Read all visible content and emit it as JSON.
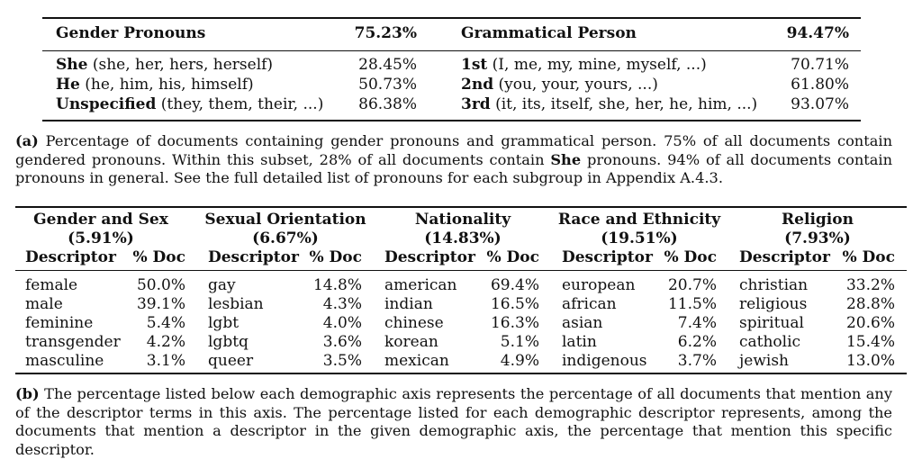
{
  "table_a": {
    "header": {
      "left_title": "Gender Pronouns",
      "left_pct": "75.23%",
      "right_title": "Grammatical Person",
      "right_pct": "94.47%"
    },
    "left_rows": [
      {
        "bold": "She",
        "terms": " (she, her, hers, herself)",
        "pct": "28.45%"
      },
      {
        "bold": "He",
        "terms": " (he, him, his, himself)",
        "pct": "50.73%"
      },
      {
        "bold": "Unspecified",
        "terms": " (they, them, their, ...)",
        "pct": "86.38%"
      }
    ],
    "right_rows": [
      {
        "bold": "1st",
        "terms": " (I, me, my, mine, myself, ...)",
        "pct": "70.71%"
      },
      {
        "bold": "2nd",
        "terms": " (you, your, yours, ...)",
        "pct": "61.80%"
      },
      {
        "bold": "3rd",
        "terms": " (it, its, itself, she, her, he, him, ...)",
        "pct": "93.07%"
      }
    ]
  },
  "caption_a": {
    "label": "(a)",
    "pre": " Percentage of documents containing gender pronouns and grammatical person. 75% of all documents contain gendered pronouns. Within this subset, 28% of all documents contain ",
    "bold": "She",
    "post": " pronouns. 94% of all documents contain pronouns in general. See the full detailed list of pronouns for each subgroup in Appendix A.4.3."
  },
  "table_b": {
    "col_descriptor": "Descriptor",
    "col_pct": "% Doc",
    "axes": [
      {
        "name": "Gender and Sex",
        "pct": "(5.91%)",
        "rows": [
          [
            "female",
            "50.0%"
          ],
          [
            "male",
            "39.1%"
          ],
          [
            "feminine",
            "5.4%"
          ],
          [
            "transgender",
            "4.2%"
          ],
          [
            "masculine",
            "3.1%"
          ]
        ]
      },
      {
        "name": "Sexual Orientation",
        "pct": "(6.67%)",
        "rows": [
          [
            "gay",
            "14.8%"
          ],
          [
            "lesbian",
            "4.3%"
          ],
          [
            "lgbt",
            "4.0%"
          ],
          [
            "lgbtq",
            "3.6%"
          ],
          [
            "queer",
            "3.5%"
          ]
        ]
      },
      {
        "name": "Nationality",
        "pct": "(14.83%)",
        "rows": [
          [
            "american",
            "69.4%"
          ],
          [
            "indian",
            "16.5%"
          ],
          [
            "chinese",
            "16.3%"
          ],
          [
            "korean",
            "5.1%"
          ],
          [
            "mexican",
            "4.9%"
          ]
        ]
      },
      {
        "name": "Race and Ethnicity",
        "pct": "(19.51%)",
        "rows": [
          [
            "european",
            "20.7%"
          ],
          [
            "african",
            "11.5%"
          ],
          [
            "asian",
            "7.4%"
          ],
          [
            "latin",
            "6.2%"
          ],
          [
            "indigenous",
            "3.7%"
          ]
        ]
      },
      {
        "name": "Religion",
        "pct": "(7.93%)",
        "rows": [
          [
            "christian",
            "33.2%"
          ],
          [
            "religious",
            "28.8%"
          ],
          [
            "spiritual",
            "20.6%"
          ],
          [
            "catholic",
            "15.4%"
          ],
          [
            "jewish",
            "13.0%"
          ]
        ]
      }
    ]
  },
  "caption_b": {
    "label": "(b)",
    "text": " The percentage listed below each demographic axis represents the percentage of all documents that mention any of the descriptor terms in this axis. The percentage listed for each demographic descriptor represents, among the documents that mention a descriptor in the given demographic axis, the percentage that mention this specific descriptor."
  }
}
